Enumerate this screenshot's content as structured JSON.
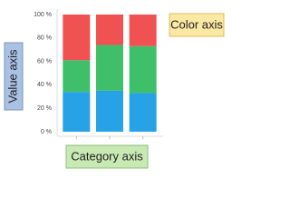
{
  "chart_data": {
    "type": "bar",
    "stacked": true,
    "categories": [
      null,
      null,
      null
    ],
    "series": [
      {
        "color": "#27a2e6",
        "values": [
          34,
          35,
          33
        ]
      },
      {
        "color": "#3fbf6a",
        "values": [
          27,
          39,
          40
        ]
      },
      {
        "color": "#f05252",
        "values": [
          39,
          26,
          27
        ]
      }
    ],
    "ylim": [
      0,
      100
    ],
    "yticks": [
      {
        "value": 0,
        "label": "0 %"
      },
      {
        "value": 20,
        "label": "20 %"
      },
      {
        "value": 40,
        "label": "40 %"
      },
      {
        "value": 60,
        "label": "60 %"
      },
      {
        "value": 80,
        "label": "80 %"
      },
      {
        "value": 100,
        "label": "100 %"
      }
    ],
    "annotations": [
      "Value axis",
      "Category axis",
      "Color axis"
    ]
  }
}
